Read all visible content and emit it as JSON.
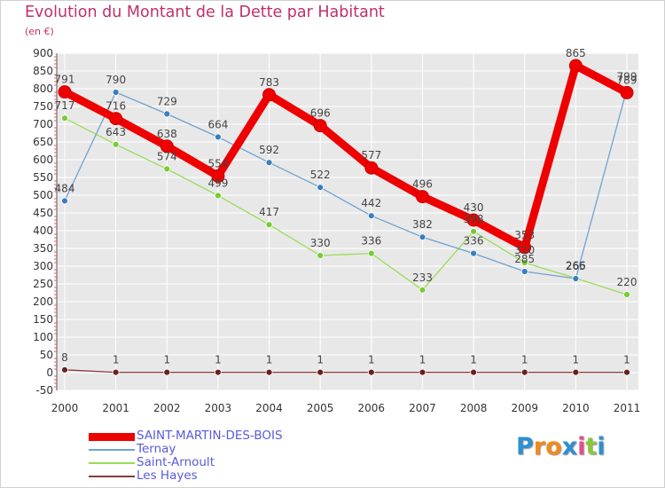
{
  "title": "Evolution du Montant de la Dette par Habitant",
  "subtitle": "(en €)",
  "logo": {
    "text": "Proxiti",
    "letters": [
      "P",
      "r",
      "o",
      "x",
      "i",
      "t",
      "i"
    ],
    "colors": [
      "#2f8fd0",
      "#f08a1c",
      "#f08a1c",
      "#2f8fd0",
      "#e84c8c",
      "#8cc63e",
      "#2f8fd0"
    ]
  },
  "chart_data": {
    "type": "line",
    "categories": [
      "2000",
      "2001",
      "2002",
      "2003",
      "2004",
      "2005",
      "2006",
      "2007",
      "2008",
      "2009",
      "2010",
      "2011"
    ],
    "ylim": [
      -50,
      900
    ],
    "yticks": [
      "-50",
      "0",
      "50",
      "100",
      "150",
      "200",
      "250",
      "300",
      "350",
      "400",
      "450",
      "500",
      "550",
      "600",
      "650",
      "700",
      "750",
      "800",
      "850",
      "900"
    ],
    "grid": true,
    "legend_position": "bottom-left",
    "series": [
      {
        "name": "SAINT-MARTIN-DES-BOIS",
        "color": "#ee0000",
        "values": [
          791,
          716,
          638,
          554,
          783,
          696,
          577,
          496,
          430,
          353,
          865,
          789
        ],
        "labels": [
          "791",
          "716",
          "638",
          "554",
          "783",
          "696",
          "577",
          "496",
          "430",
          "353",
          "865",
          "789"
        ]
      },
      {
        "name": "Ternay",
        "color": "#6ea3d0",
        "values": [
          484,
          790,
          729,
          664,
          592,
          522,
          442,
          382,
          336,
          285,
          265,
          799
        ],
        "labels": [
          "484",
          "790",
          "729",
          "664",
          "592",
          "522",
          "442",
          "382",
          "336",
          "285",
          "265",
          "799"
        ]
      },
      {
        "name": "Saint-Arnoult",
        "color": "#99dd55",
        "values": [
          717,
          643,
          574,
          499,
          417,
          330,
          336,
          233,
          398,
          310,
          266,
          220
        ],
        "labels": [
          "717",
          "643",
          "574",
          "499",
          "417",
          "330",
          "336",
          "233",
          "398",
          "310",
          "266",
          "220"
        ]
      },
      {
        "name": "Les Hayes",
        "color": "#8a3a3a",
        "values": [
          8,
          1,
          1,
          1,
          1,
          1,
          1,
          1,
          1,
          1,
          1,
          1
        ],
        "labels": [
          "8",
          "1",
          "1",
          "1",
          "1",
          "1",
          "1",
          "1",
          "1",
          "1",
          "1",
          "1"
        ]
      }
    ]
  }
}
